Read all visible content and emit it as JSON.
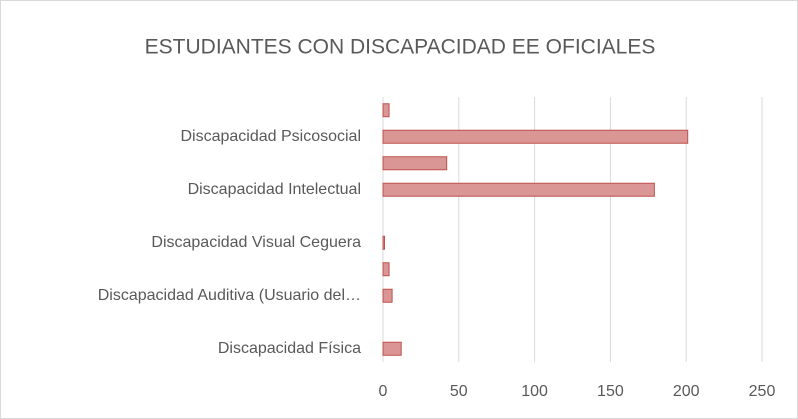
{
  "chart_data": {
    "type": "hbar",
    "title": "ESTUDIANTES CON DISCAPACIDAD EE OFICIALES",
    "categories": [
      "Discapacidad Física",
      null,
      "Discapacidad Auditiva (Usuario del…",
      null,
      "Discapacidad Visual Ceguera",
      null,
      "Discapacidad Intelectual",
      null,
      "Discapacidad Psicosocial",
      null
    ],
    "values": [
      12,
      0,
      6,
      4,
      1,
      0,
      179,
      42,
      201,
      4
    ],
    "color": "#d99694",
    "edge_color": "#c0504d",
    "xlim": [
      0,
      250
    ],
    "xticks": [
      0,
      50,
      100,
      150,
      200,
      250
    ],
    "grid": true
  }
}
